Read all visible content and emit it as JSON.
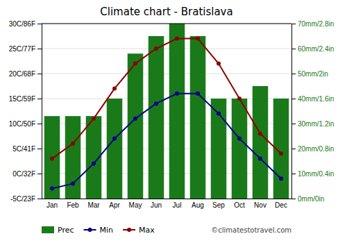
{
  "chart_data": {
    "type": "combo",
    "title": "Climate chart - Bratislava",
    "categories": [
      "Jan",
      "Feb",
      "Mar",
      "Apr",
      "May",
      "Jun",
      "Jul",
      "Aug",
      "Sep",
      "Oct",
      "Nov",
      "Dec"
    ],
    "series": [
      {
        "name": "Prec",
        "type": "bar",
        "axis": "y2",
        "color": "#1a7a1a",
        "values": [
          33,
          33,
          33,
          40,
          58,
          65,
          70,
          65,
          40,
          40,
          45,
          40
        ]
      },
      {
        "name": "Min",
        "type": "line",
        "color": "#00008b",
        "marker": "circle",
        "values": [
          -3,
          -2,
          2,
          7,
          11,
          14,
          16,
          16,
          12,
          7,
          3,
          -1
        ]
      },
      {
        "name": "Max",
        "type": "line",
        "color": "#8b0000",
        "marker": "circle",
        "values": [
          3,
          6,
          11,
          17,
          22,
          25,
          27,
          27,
          22,
          15,
          8,
          4
        ]
      }
    ],
    "ylim": [
      -5,
      30
    ],
    "yticks": [
      {
        "value": -5,
        "label": "-5C/23F"
      },
      {
        "value": 0,
        "label": "0C/32F"
      },
      {
        "value": 5,
        "label": "5C/41F"
      },
      {
        "value": 10,
        "label": "10C/50F"
      },
      {
        "value": 15,
        "label": "15C/59F"
      },
      {
        "value": 20,
        "label": "20C/68F"
      },
      {
        "value": 25,
        "label": "25C/77F"
      },
      {
        "value": 30,
        "label": "30C/86F"
      }
    ],
    "y2lim": [
      0,
      70
    ],
    "y2ticks": [
      {
        "value": 0,
        "label": "0mm/0in"
      },
      {
        "value": 10,
        "label": "10mm/0.4in"
      },
      {
        "value": 20,
        "label": "20mm/0.8in"
      },
      {
        "value": 30,
        "label": "30mm/1.2in"
      },
      {
        "value": 40,
        "label": "40mm/1.6in"
      },
      {
        "value": 50,
        "label": "50mm/2in"
      },
      {
        "value": 60,
        "label": "60mm/2.4in"
      },
      {
        "value": 70,
        "label": "70mm/2.8in"
      }
    ],
    "grid": true,
    "legend": "bottom",
    "annotations": [
      "©climatestotravel.com"
    ]
  }
}
